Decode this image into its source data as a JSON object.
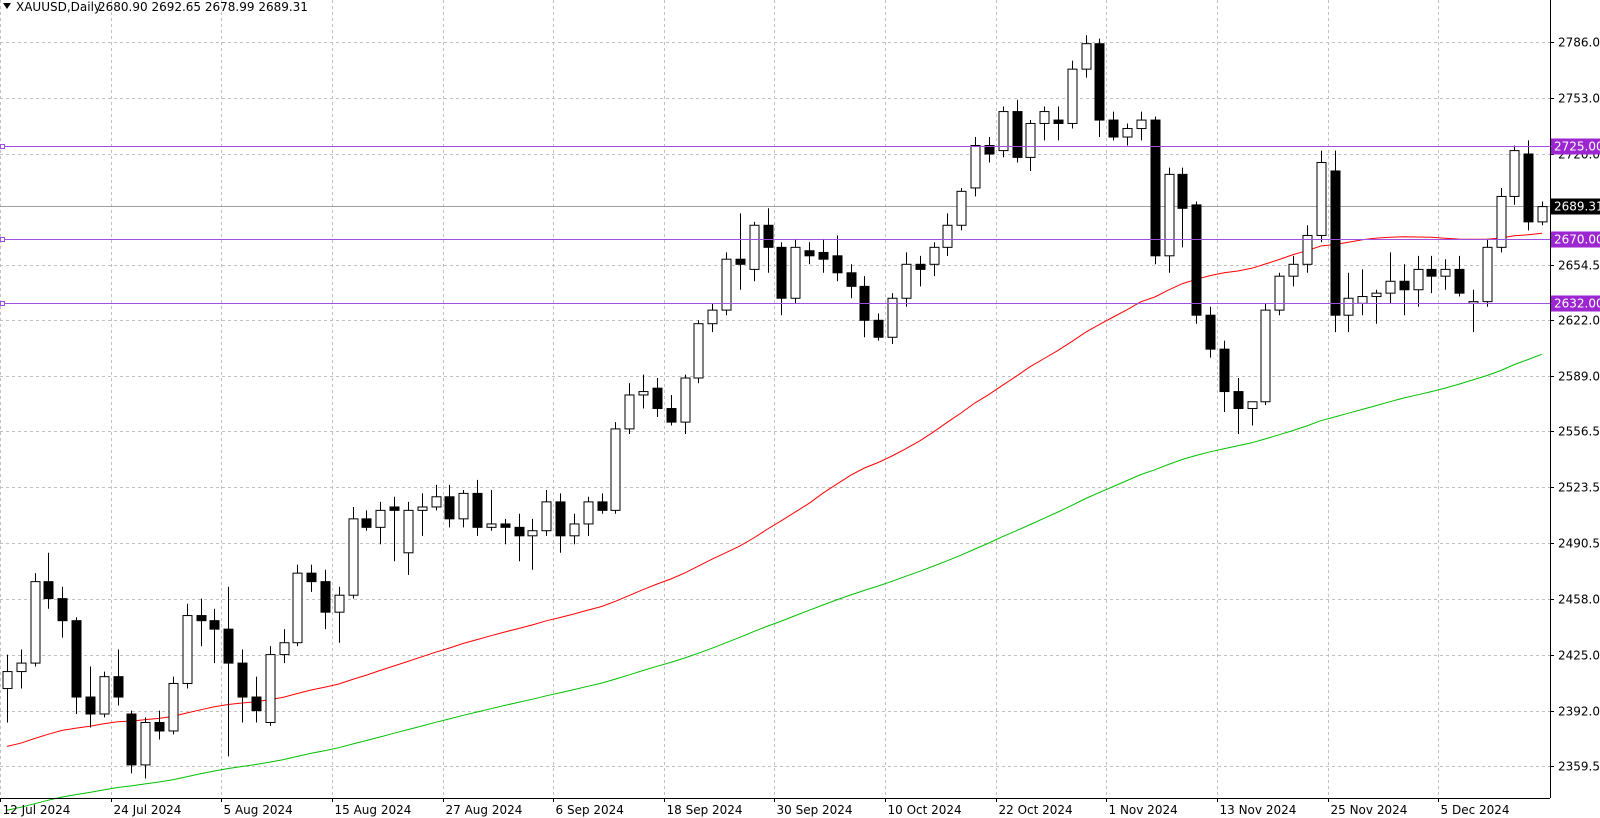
{
  "header": {
    "symbol": "XAUUSD,Daily",
    "ohlc": "2680.90 2692.65 2678.99 2689.31"
  },
  "colors": {
    "grid": "#c0c0c0",
    "ma_fast": "#ff0000",
    "ma_slow": "#00c000",
    "hline": "#a050e0",
    "hline_tag": "#9c27d0",
    "price_tag": "#000000"
  },
  "chart_data": {
    "type": "candlestick",
    "title": "XAUUSD,Daily",
    "y_ticks": [
      "2786.00",
      "2753.00",
      "2720.00",
      "2689.31",
      "2654.50",
      "2622.00",
      "2589.00",
      "2556.50",
      "2523.50",
      "2490.50",
      "2458.00",
      "2425.00",
      "2392.00",
      "2359.50"
    ],
    "x_ticks": [
      "12 Jul 2024",
      "24 Jul 2024",
      "5 Aug 2024",
      "15 Aug 2024",
      "27 Aug 2024",
      "6 Sep 2024",
      "18 Sep 2024",
      "30 Sep 2024",
      "10 Oct 2024",
      "22 Oct 2024",
      "1 Nov 2024",
      "13 Nov 2024",
      "25 Nov 2024",
      "5 Dec 2024"
    ],
    "ylim": [
      2343,
      2800
    ],
    "current_price": "2689.31",
    "horizontal_levels": [
      "2725.00",
      "2670.00",
      "2632.00"
    ],
    "candles": [
      [
        2405,
        2425,
        2385,
        2415
      ],
      [
        2415,
        2428,
        2405,
        2420
      ],
      [
        2420,
        2473,
        2418,
        2468
      ],
      [
        2468,
        2485,
        2452,
        2458
      ],
      [
        2458,
        2465,
        2435,
        2445
      ],
      [
        2445,
        2447,
        2390,
        2400
      ],
      [
        2400,
        2418,
        2382,
        2390
      ],
      [
        2390,
        2415,
        2388,
        2412
      ],
      [
        2412,
        2428,
        2395,
        2400
      ],
      [
        2390,
        2392,
        2355,
        2360
      ],
      [
        2360,
        2388,
        2352,
        2385
      ],
      [
        2385,
        2392,
        2375,
        2380
      ],
      [
        2380,
        2412,
        2378,
        2408
      ],
      [
        2408,
        2455,
        2405,
        2448
      ],
      [
        2448,
        2458,
        2430,
        2445
      ],
      [
        2445,
        2452,
        2420,
        2440
      ],
      [
        2440,
        2465,
        2365,
        2420
      ],
      [
        2420,
        2428,
        2385,
        2400
      ],
      [
        2400,
        2412,
        2385,
        2392
      ],
      [
        2385,
        2430,
        2383,
        2425
      ],
      [
        2425,
        2440,
        2420,
        2432
      ],
      [
        2432,
        2478,
        2430,
        2473
      ],
      [
        2473,
        2478,
        2462,
        2468
      ],
      [
        2468,
        2475,
        2440,
        2450
      ],
      [
        2450,
        2465,
        2432,
        2460
      ],
      [
        2460,
        2512,
        2458,
        2505
      ],
      [
        2505,
        2510,
        2498,
        2500
      ],
      [
        2500,
        2515,
        2490,
        2510
      ],
      [
        2512,
        2518,
        2480,
        2510
      ],
      [
        2485,
        2515,
        2472,
        2510
      ],
      [
        2510,
        2520,
        2495,
        2512
      ],
      [
        2512,
        2525,
        2510,
        2518
      ],
      [
        2518,
        2525,
        2500,
        2505
      ],
      [
        2505,
        2522,
        2500,
        2520
      ],
      [
        2520,
        2528,
        2495,
        2500
      ],
      [
        2500,
        2522,
        2498,
        2502
      ],
      [
        2502,
        2505,
        2490,
        2500
      ],
      [
        2500,
        2508,
        2480,
        2495
      ],
      [
        2495,
        2505,
        2475,
        2498
      ],
      [
        2498,
        2522,
        2495,
        2515
      ],
      [
        2515,
        2520,
        2485,
        2495
      ],
      [
        2495,
        2508,
        2490,
        2502
      ],
      [
        2502,
        2518,
        2495,
        2515
      ],
      [
        2515,
        2520,
        2508,
        2510
      ],
      [
        2510,
        2562,
        2508,
        2558
      ],
      [
        2558,
        2585,
        2555,
        2578
      ],
      [
        2578,
        2590,
        2570,
        2580
      ],
      [
        2582,
        2588,
        2565,
        2570
      ],
      [
        2570,
        2578,
        2560,
        2562
      ],
      [
        2562,
        2590,
        2555,
        2588
      ],
      [
        2588,
        2622,
        2585,
        2620
      ],
      [
        2620,
        2632,
        2615,
        2628
      ],
      [
        2628,
        2662,
        2625,
        2658
      ],
      [
        2658,
        2685,
        2640,
        2655
      ],
      [
        2652,
        2680,
        2645,
        2678
      ],
      [
        2678,
        2688,
        2650,
        2665
      ],
      [
        2665,
        2668,
        2625,
        2635
      ],
      [
        2635,
        2670,
        2632,
        2665
      ],
      [
        2663,
        2668,
        2655,
        2660
      ],
      [
        2662,
        2670,
        2650,
        2658
      ],
      [
        2660,
        2672,
        2645,
        2650
      ],
      [
        2650,
        2655,
        2635,
        2642
      ],
      [
        2642,
        2648,
        2612,
        2622
      ],
      [
        2622,
        2626,
        2610,
        2612
      ],
      [
        2612,
        2638,
        2608,
        2635
      ],
      [
        2635,
        2662,
        2630,
        2655
      ],
      [
        2655,
        2660,
        2642,
        2652
      ],
      [
        2655,
        2668,
        2648,
        2665
      ],
      [
        2665,
        2685,
        2660,
        2678
      ],
      [
        2678,
        2700,
        2675,
        2698
      ],
      [
        2700,
        2730,
        2695,
        2725
      ],
      [
        2725,
        2730,
        2715,
        2720
      ],
      [
        2722,
        2748,
        2718,
        2745
      ],
      [
        2745,
        2752,
        2715,
        2718
      ],
      [
        2718,
        2740,
        2710,
        2738
      ],
      [
        2738,
        2748,
        2728,
        2745
      ],
      [
        2740,
        2748,
        2728,
        2738
      ],
      [
        2738,
        2775,
        2735,
        2770
      ],
      [
        2770,
        2790,
        2765,
        2785
      ],
      [
        2785,
        2788,
        2730,
        2740
      ],
      [
        2740,
        2745,
        2728,
        2730
      ],
      [
        2730,
        2738,
        2725,
        2735
      ],
      [
        2735,
        2745,
        2728,
        2740
      ],
      [
        2740,
        2742,
        2655,
        2660
      ],
      [
        2660,
        2712,
        2650,
        2708
      ],
      [
        2708,
        2712,
        2665,
        2688
      ],
      [
        2690,
        2692,
        2620,
        2625
      ],
      [
        2625,
        2630,
        2600,
        2605
      ],
      [
        2605,
        2610,
        2568,
        2580
      ],
      [
        2580,
        2588,
        2555,
        2570
      ],
      [
        2570,
        2574,
        2560,
        2574
      ],
      [
        2574,
        2632,
        2572,
        2628
      ],
      [
        2628,
        2650,
        2625,
        2648
      ],
      [
        2648,
        2660,
        2642,
        2655
      ],
      [
        2655,
        2678,
        2650,
        2672
      ],
      [
        2672,
        2722,
        2668,
        2715
      ],
      [
        2710,
        2722,
        2615,
        2625
      ],
      [
        2625,
        2650,
        2615,
        2635
      ],
      [
        2632,
        2652,
        2625,
        2636
      ],
      [
        2636,
        2640,
        2620,
        2638
      ],
      [
        2638,
        2662,
        2632,
        2645
      ],
      [
        2645,
        2655,
        2625,
        2640
      ],
      [
        2640,
        2660,
        2630,
        2652
      ],
      [
        2652,
        2660,
        2638,
        2648
      ],
      [
        2648,
        2658,
        2640,
        2652
      ],
      [
        2652,
        2660,
        2636,
        2638
      ],
      [
        2632,
        2640,
        2615,
        2633
      ],
      [
        2633,
        2670,
        2630,
        2665
      ],
      [
        2665,
        2700,
        2662,
        2695
      ],
      [
        2695,
        2725,
        2690,
        2722
      ],
      [
        2720,
        2728,
        2675,
        2680
      ],
      [
        2680,
        2692,
        2678,
        2689
      ]
    ]
  }
}
